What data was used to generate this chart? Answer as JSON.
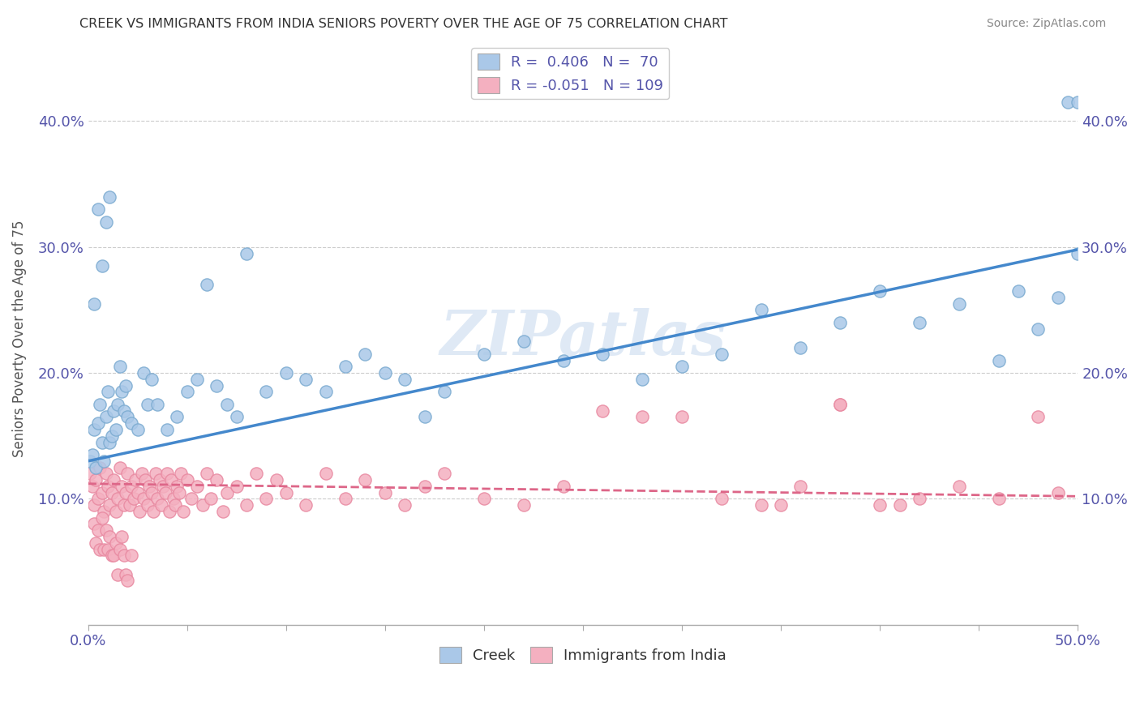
{
  "title": "CREEK VS IMMIGRANTS FROM INDIA SENIORS POVERTY OVER THE AGE OF 75 CORRELATION CHART",
  "source": "Source: ZipAtlas.com",
  "ylabel": "Seniors Poverty Over the Age of 75",
  "xmin": 0.0,
  "xmax": 0.5,
  "ymin": 0.0,
  "ymax": 0.455,
  "yticks": [
    0.1,
    0.2,
    0.3,
    0.4
  ],
  "ytick_labels": [
    "10.0%",
    "20.0%",
    "30.0%",
    "40.0%"
  ],
  "watermark": "ZIPatlas",
  "creek_R": 0.406,
  "creek_N": 70,
  "india_R": -0.051,
  "india_N": 109,
  "creek_color": "#aac8e8",
  "india_color": "#f4b0c0",
  "creek_edge_color": "#7aaad0",
  "india_edge_color": "#e888a0",
  "creek_line_color": "#4488cc",
  "india_line_color": "#dd6688",
  "legend_label_creek": "Creek",
  "legend_label_india": "Immigrants from India",
  "axis_color": "#5555aa",
  "dot_size": 120,
  "creek_line_start_y": 0.13,
  "creek_line_end_y": 0.298,
  "india_line_start_y": 0.112,
  "india_line_end_y": 0.102,
  "creek_x": [
    0.001,
    0.002,
    0.003,
    0.004,
    0.005,
    0.006,
    0.007,
    0.008,
    0.009,
    0.01,
    0.011,
    0.012,
    0.013,
    0.014,
    0.015,
    0.016,
    0.017,
    0.018,
    0.019,
    0.02,
    0.022,
    0.025,
    0.028,
    0.03,
    0.032,
    0.035,
    0.04,
    0.045,
    0.05,
    0.055,
    0.06,
    0.065,
    0.07,
    0.075,
    0.08,
    0.09,
    0.1,
    0.11,
    0.12,
    0.13,
    0.14,
    0.15,
    0.16,
    0.17,
    0.18,
    0.2,
    0.22,
    0.24,
    0.26,
    0.28,
    0.3,
    0.32,
    0.34,
    0.36,
    0.38,
    0.4,
    0.42,
    0.44,
    0.46,
    0.47,
    0.48,
    0.49,
    0.495,
    0.5,
    0.5,
    0.003,
    0.005,
    0.007,
    0.009,
    0.011
  ],
  "creek_y": [
    0.13,
    0.135,
    0.155,
    0.125,
    0.16,
    0.175,
    0.145,
    0.13,
    0.165,
    0.185,
    0.145,
    0.15,
    0.17,
    0.155,
    0.175,
    0.205,
    0.185,
    0.17,
    0.19,
    0.165,
    0.16,
    0.155,
    0.2,
    0.175,
    0.195,
    0.175,
    0.155,
    0.165,
    0.185,
    0.195,
    0.27,
    0.19,
    0.175,
    0.165,
    0.295,
    0.185,
    0.2,
    0.195,
    0.185,
    0.205,
    0.215,
    0.2,
    0.195,
    0.165,
    0.185,
    0.215,
    0.225,
    0.21,
    0.215,
    0.195,
    0.205,
    0.215,
    0.25,
    0.22,
    0.24,
    0.265,
    0.24,
    0.255,
    0.21,
    0.265,
    0.235,
    0.26,
    0.415,
    0.295,
    0.415,
    0.255,
    0.33,
    0.285,
    0.32,
    0.34
  ],
  "india_x": [
    0.001,
    0.002,
    0.003,
    0.004,
    0.005,
    0.006,
    0.007,
    0.008,
    0.009,
    0.01,
    0.011,
    0.012,
    0.013,
    0.014,
    0.015,
    0.016,
    0.017,
    0.018,
    0.019,
    0.02,
    0.021,
    0.022,
    0.023,
    0.024,
    0.025,
    0.026,
    0.027,
    0.028,
    0.029,
    0.03,
    0.031,
    0.032,
    0.033,
    0.034,
    0.035,
    0.036,
    0.037,
    0.038,
    0.039,
    0.04,
    0.041,
    0.042,
    0.043,
    0.044,
    0.045,
    0.046,
    0.047,
    0.048,
    0.05,
    0.052,
    0.055,
    0.058,
    0.06,
    0.062,
    0.065,
    0.068,
    0.07,
    0.075,
    0.08,
    0.085,
    0.09,
    0.095,
    0.1,
    0.11,
    0.12,
    0.13,
    0.14,
    0.15,
    0.16,
    0.17,
    0.18,
    0.2,
    0.22,
    0.24,
    0.26,
    0.28,
    0.3,
    0.32,
    0.34,
    0.36,
    0.38,
    0.4,
    0.42,
    0.44,
    0.46,
    0.48,
    0.49,
    0.35,
    0.38,
    0.41,
    0.003,
    0.004,
    0.005,
    0.006,
    0.007,
    0.008,
    0.009,
    0.01,
    0.011,
    0.012,
    0.013,
    0.014,
    0.015,
    0.016,
    0.017,
    0.018,
    0.019,
    0.02,
    0.022
  ],
  "india_y": [
    0.12,
    0.11,
    0.095,
    0.115,
    0.1,
    0.125,
    0.105,
    0.09,
    0.12,
    0.11,
    0.095,
    0.105,
    0.115,
    0.09,
    0.1,
    0.125,
    0.11,
    0.095,
    0.105,
    0.12,
    0.095,
    0.11,
    0.1,
    0.115,
    0.105,
    0.09,
    0.12,
    0.1,
    0.115,
    0.095,
    0.11,
    0.105,
    0.09,
    0.12,
    0.1,
    0.115,
    0.095,
    0.11,
    0.105,
    0.12,
    0.09,
    0.115,
    0.1,
    0.095,
    0.11,
    0.105,
    0.12,
    0.09,
    0.115,
    0.1,
    0.11,
    0.095,
    0.12,
    0.1,
    0.115,
    0.09,
    0.105,
    0.11,
    0.095,
    0.12,
    0.1,
    0.115,
    0.105,
    0.095,
    0.12,
    0.1,
    0.115,
    0.105,
    0.095,
    0.11,
    0.12,
    0.1,
    0.095,
    0.11,
    0.17,
    0.165,
    0.165,
    0.1,
    0.095,
    0.11,
    0.175,
    0.095,
    0.1,
    0.11,
    0.1,
    0.165,
    0.105,
    0.095,
    0.175,
    0.095,
    0.08,
    0.065,
    0.075,
    0.06,
    0.085,
    0.06,
    0.075,
    0.06,
    0.07,
    0.055,
    0.055,
    0.065,
    0.04,
    0.06,
    0.07,
    0.055,
    0.04,
    0.035,
    0.055
  ]
}
